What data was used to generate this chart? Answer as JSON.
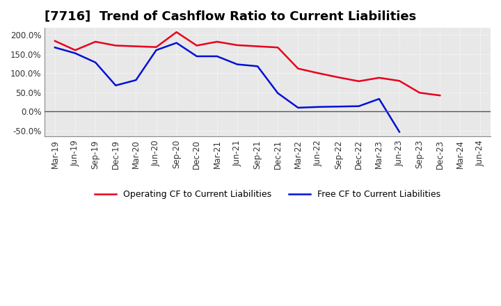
{
  "title": "[7716]  Trend of Cashflow Ratio to Current Liabilities",
  "x_labels": [
    "Mar-19",
    "Jun-19",
    "Sep-19",
    "Dec-19",
    "Mar-20",
    "Jun-20",
    "Sep-20",
    "Dec-20",
    "Mar-21",
    "Jun-21",
    "Sep-21",
    "Dec-21",
    "Mar-22",
    "Jun-22",
    "Sep-22",
    "Dec-22",
    "Mar-23",
    "Jun-23",
    "Sep-23",
    "Dec-23",
    "Mar-24",
    "Jun-24"
  ],
  "operating_cf": [
    1.84,
    1.6,
    1.82,
    1.72,
    1.7,
    1.68,
    2.07,
    1.72,
    1.82,
    1.73,
    1.7,
    1.67,
    1.12,
    1.0,
    0.89,
    0.79,
    0.88,
    0.8,
    0.49,
    0.42,
    null,
    null
  ],
  "free_cf": [
    1.67,
    1.52,
    1.28,
    0.68,
    0.82,
    1.6,
    1.79,
    1.44,
    1.44,
    1.23,
    1.18,
    0.48,
    0.1,
    0.12,
    0.13,
    0.14,
    0.33,
    -0.53,
    null,
    null,
    null,
    null
  ],
  "operating_color": "#e8001c",
  "free_color": "#0010d4",
  "yticks": [
    -0.5,
    0.0,
    0.5,
    1.0,
    1.5,
    2.0
  ],
  "yticklabels": [
    "-50.0%",
    "0.0%",
    "50.0%",
    "100.0%",
    "150.0%",
    "200.0%"
  ],
  "ylim_min": -0.65,
  "ylim_max": 2.18,
  "legend_operating": "Operating CF to Current Liabilities",
  "legend_free": "Free CF to Current Liabilities",
  "background_color": "#ffffff",
  "plot_bg_color": "#e8e8e8",
  "grid_color": "#ffffff",
  "grid_linestyle": ":",
  "title_fontsize": 13,
  "tick_fontsize": 8.5
}
